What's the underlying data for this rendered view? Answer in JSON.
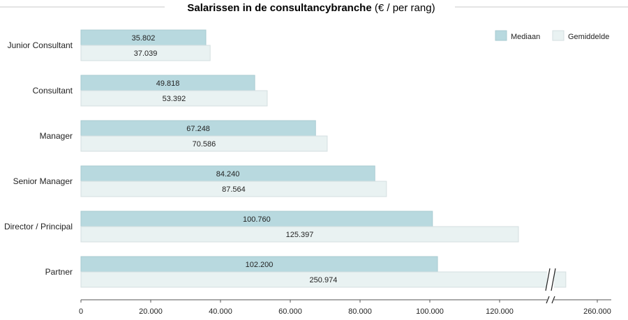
{
  "chart_data": {
    "type": "bar",
    "orientation": "horizontal",
    "title_main": "Salarissen in de consultancybranche",
    "title_suffix": " (€ / per rang)",
    "categories": [
      "Junior Consultant",
      "Consultant",
      "Manager",
      "Senior Manager",
      "Director / Principal",
      "Partner"
    ],
    "series": [
      {
        "name": "Mediaan",
        "color": "#b8d9df",
        "values": [
          35802,
          49818,
          67248,
          84240,
          100760,
          102200
        ],
        "labels": [
          "35.802",
          "49.818",
          "67.248",
          "84.240",
          "100.760",
          "102.200"
        ]
      },
      {
        "name": "Gemiddelde",
        "color": "#e9f2f2",
        "values": [
          37039,
          53392,
          70586,
          87564,
          125397,
          250974
        ],
        "labels": [
          "37.039",
          "53.392",
          "70.586",
          "87.564",
          "125.397",
          "250.974"
        ]
      }
    ],
    "x_ticks": [
      0,
      20000,
      40000,
      60000,
      80000,
      100000,
      120000,
      260000
    ],
    "x_tick_labels": [
      "0",
      "20.000",
      "40.000",
      "60.000",
      "80.000",
      "100.000",
      "120.000",
      "260.000"
    ],
    "axis_break": {
      "from": 134000,
      "to": 246000
    },
    "legend_position": "top-right",
    "grid": false
  }
}
